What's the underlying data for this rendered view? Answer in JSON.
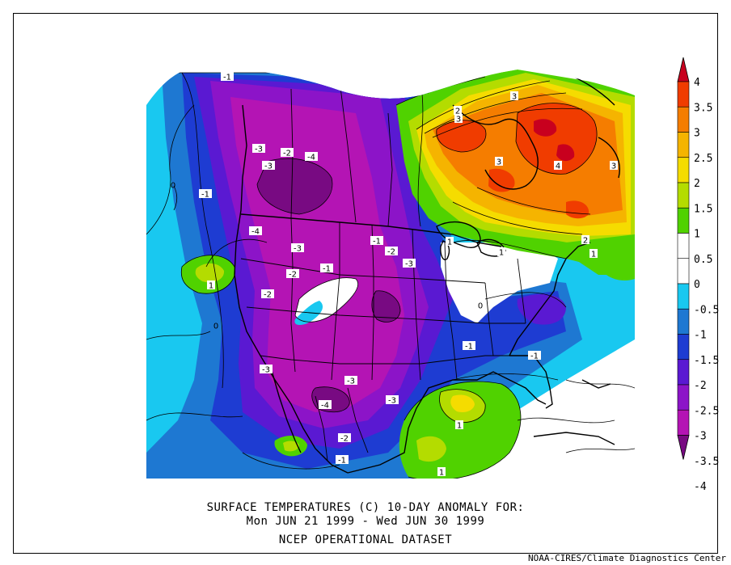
{
  "caption": {
    "line1": "SURFACE TEMPERATURES (C)   10-DAY ANOMALY FOR:",
    "line2": "Mon JUN 21 1999 - Wed JUN 30 1999",
    "line3": "NCEP OPERATIONAL DATASET"
  },
  "credit": "NOAA-CIRES/Climate Diagnostics Center",
  "colorbar": {
    "labels": [
      "4",
      "3.5",
      "3",
      "2.5",
      "2",
      "1.5",
      "1",
      "0.5",
      "0",
      "-0.5",
      "-1",
      "-1.5",
      "-2",
      "-2.5",
      "-3",
      "-3.5",
      "-4"
    ],
    "colors": [
      "#c8001e",
      "#f03c00",
      "#f57d00",
      "#f5b400",
      "#f5dc00",
      "#b4dc00",
      "#50d200",
      "#ffffff",
      "#ffffff",
      "#19c8f0",
      "#1e78d2",
      "#1e3cd2",
      "#5a19d2",
      "#8c14c8",
      "#b414b4",
      "#780a82"
    ]
  },
  "contour_labels": [
    {
      "text": "-1"
    },
    {
      "text": "-3"
    },
    {
      "text": "-2"
    },
    {
      "text": "-3"
    },
    {
      "text": "-4"
    },
    {
      "text": "-1"
    },
    {
      "text": "-4"
    },
    {
      "text": "-3"
    },
    {
      "text": "-2"
    },
    {
      "text": "-1"
    },
    {
      "text": "-1"
    },
    {
      "text": "-2"
    },
    {
      "text": "-3"
    },
    {
      "text": "-2"
    },
    {
      "text": "-3"
    },
    {
      "text": "-3"
    },
    {
      "text": "-4"
    },
    {
      "text": "-3"
    },
    {
      "text": "-2"
    },
    {
      "text": "-1"
    },
    {
      "text": "-1"
    },
    {
      "text": "-1"
    },
    {
      "text": "1"
    },
    {
      "text": "1"
    },
    {
      "text": "1"
    },
    {
      "text": "1"
    },
    {
      "text": "2"
    },
    {
      "text": "3"
    },
    {
      "text": "3"
    },
    {
      "text": "3"
    },
    {
      "text": "4"
    },
    {
      "text": "3"
    },
    {
      "text": "2"
    },
    {
      "text": "1"
    },
    {
      "text": "1"
    },
    {
      "text": "0"
    },
    {
      "text": "0"
    },
    {
      "text": "0"
    }
  ]
}
